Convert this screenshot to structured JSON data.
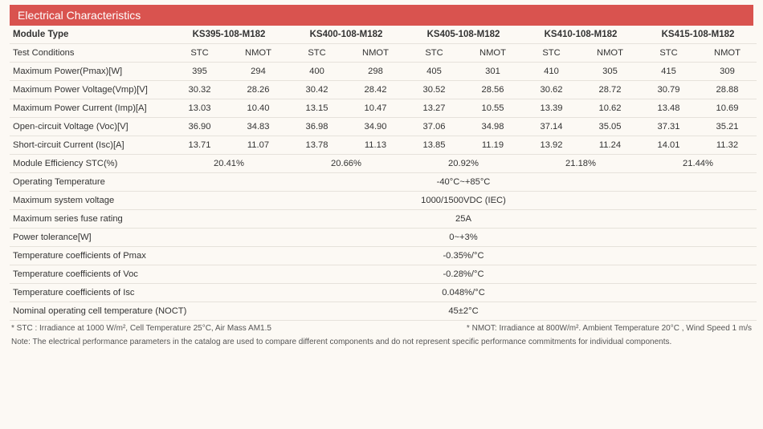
{
  "title": "Electrical Characteristics",
  "labels": {
    "module_type": "Module Type",
    "test_conditions": "Test Conditions",
    "pmax": "Maximum Power(Pmax)[W]",
    "vmp": "Maximum Power Voltage(Vmp)[V]",
    "imp": "Maximum Power Current (Imp)[A]",
    "voc": "Open-circuit Voltage (Voc)[V]",
    "isc": "Short-circuit Current (Isc)[A]",
    "eff": "Module Efficiency STC(%)",
    "op_temp": "Operating Temperature",
    "max_sys_v": "Maximum system voltage",
    "max_fuse": "Maximum series fuse rating",
    "tol": "Power tolerance[W]",
    "tc_pmax": "Temperature coefficients of Pmax",
    "tc_voc": "Temperature coefficients of Voc",
    "tc_isc": "Temperature coefficients of Isc",
    "noct": "Nominal operating cell temperature (NOCT)"
  },
  "conditions": {
    "stc": "STC",
    "nmot": "NMOT"
  },
  "modules": [
    {
      "name": "KS395-108-M182",
      "eff": "20.41%",
      "pmax": [
        "395",
        "294"
      ],
      "vmp": [
        "30.32",
        "28.26"
      ],
      "imp": [
        "13.03",
        "10.40"
      ],
      "voc": [
        "36.90",
        "34.83"
      ],
      "isc": [
        "13.71",
        "11.07"
      ]
    },
    {
      "name": "KS400-108-M182",
      "eff": "20.66%",
      "pmax": [
        "400",
        "298"
      ],
      "vmp": [
        "30.42",
        "28.42"
      ],
      "imp": [
        "13.15",
        "10.47"
      ],
      "voc": [
        "36.98",
        "34.90"
      ],
      "isc": [
        "13.78",
        "11.13"
      ]
    },
    {
      "name": "KS405-108-M182",
      "eff": "20.92%",
      "pmax": [
        "405",
        "301"
      ],
      "vmp": [
        "30.52",
        "28.56"
      ],
      "imp": [
        "13.27",
        "10.55"
      ],
      "voc": [
        "37.06",
        "34.98"
      ],
      "isc": [
        "13.85",
        "11.19"
      ]
    },
    {
      "name": "KS410-108-M182",
      "eff": "21.18%",
      "pmax": [
        "410",
        "305"
      ],
      "vmp": [
        "30.62",
        "28.72"
      ],
      "imp": [
        "13.39",
        "10.62"
      ],
      "voc": [
        "37.14",
        "35.05"
      ],
      "isc": [
        "13.92",
        "11.24"
      ]
    },
    {
      "name": "KS415-108-M182",
      "eff": "21.44%",
      "pmax": [
        "415",
        "309"
      ],
      "vmp": [
        "30.79",
        "28.88"
      ],
      "imp": [
        "13.48",
        "10.69"
      ],
      "voc": [
        "37.31",
        "35.21"
      ],
      "isc": [
        "14.01",
        "11.32"
      ]
    }
  ],
  "common": {
    "op_temp": "-40°C~+85°C",
    "max_sys_v": "1000/1500VDC (IEC)",
    "max_fuse": "25A",
    "tol": "0~+3%",
    "tc_pmax": "-0.35%/°C",
    "tc_voc": "-0.28%/°C",
    "tc_isc": "0.048%/°C",
    "noct": "45±2°C"
  },
  "footnotes": {
    "stc": "* STC : Irradiance at 1000 W/m², Cell Temperature 25°C, Air Mass AM1.5",
    "nmot": "* NMOT: Irradiance at 800W/m². Ambient Temperature 20°C , Wind Speed 1 m/s"
  },
  "note": "Note: The electrical performance parameters in the catalog are used to compare different components and do not represent specific performance commitments for individual components.",
  "style": {
    "header_bg": "#d9534f",
    "header_fg": "#ffffff",
    "page_bg": "#fcf9f4",
    "border_color": "#e6e2db",
    "text_color": "#333333",
    "foot_color": "#555555",
    "font_family": "Arial",
    "font_size_body": 11.2,
    "font_size_header": 14,
    "font_size_foot": 10
  }
}
